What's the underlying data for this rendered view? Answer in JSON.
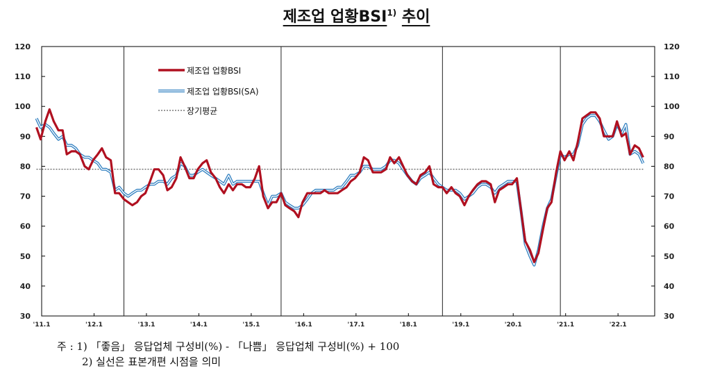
{
  "title": {
    "main": "제조업 업황BSI",
    "sup": "1)",
    "suffix": "추이"
  },
  "chart_data": {
    "type": "line",
    "y_ticks": [
      "120",
      "110",
      "100",
      "90",
      "80",
      "70",
      "60",
      "50",
      "40",
      "30"
    ],
    "ylim": [
      30,
      120
    ],
    "x_tick_labels": [
      "'11.1",
      "'12.1",
      "'13.1",
      "'14.1",
      "'15.1",
      "'16.1",
      "'17.1",
      "'18.1",
      "'19.1",
      "'20.1",
      "'21.1",
      "'22.1"
    ],
    "x_start": "2011.1",
    "x_end": "2022.8",
    "vertical_lines": [
      2012.67,
      2015.67,
      2018.75,
      2021.0
    ],
    "long_term_average": 79,
    "legend": {
      "position": "upper-left",
      "items": [
        "제조업 업황BSI",
        "제조업 업황BSI(SA)",
        "장기평균"
      ]
    },
    "colors": {
      "bsi": "#b01020",
      "sa_outer": "#2f7fc0",
      "sa_inner": "#ffffff",
      "avg": "#333333"
    },
    "series": [
      {
        "name": "제조업 업황BSI",
        "x": [
          2011.0,
          2011.08,
          2011.17,
          2011.25,
          2011.33,
          2011.42,
          2011.5,
          2011.58,
          2011.67,
          2011.75,
          2011.83,
          2011.92,
          2012.0,
          2012.08,
          2012.17,
          2012.25,
          2012.33,
          2012.42,
          2012.5,
          2012.58,
          2012.67,
          2012.75,
          2012.83,
          2012.92,
          2013.0,
          2013.08,
          2013.17,
          2013.25,
          2013.33,
          2013.42,
          2013.5,
          2013.58,
          2013.67,
          2013.75,
          2013.83,
          2013.92,
          2014.0,
          2014.08,
          2014.17,
          2014.25,
          2014.33,
          2014.42,
          2014.5,
          2014.58,
          2014.67,
          2014.75,
          2014.83,
          2014.92,
          2015.0,
          2015.08,
          2015.17,
          2015.25,
          2015.33,
          2015.42,
          2015.5,
          2015.58,
          2015.67,
          2015.75,
          2015.83,
          2015.92,
          2016.0,
          2016.08,
          2016.17,
          2016.25,
          2016.33,
          2016.42,
          2016.5,
          2016.58,
          2016.67,
          2016.75,
          2016.83,
          2016.92,
          2017.0,
          2017.08,
          2017.17,
          2017.25,
          2017.33,
          2017.42,
          2017.5,
          2017.58,
          2017.67,
          2017.75,
          2017.83,
          2017.92,
          2018.0,
          2018.08,
          2018.17,
          2018.25,
          2018.33,
          2018.42,
          2018.5,
          2018.58,
          2018.67,
          2018.75,
          2018.83,
          2018.92,
          2019.0,
          2019.08,
          2019.17,
          2019.25,
          2019.33,
          2019.42,
          2019.5,
          2019.58,
          2019.67,
          2019.75,
          2019.83,
          2019.92,
          2020.0,
          2020.08,
          2020.17,
          2020.25,
          2020.33,
          2020.42,
          2020.5,
          2020.58,
          2020.67,
          2020.75,
          2020.83,
          2020.92,
          2021.0,
          2021.08,
          2021.17,
          2021.25,
          2021.33,
          2021.42,
          2021.5,
          2021.58,
          2021.67,
          2021.75,
          2021.83,
          2021.92,
          2022.0,
          2022.08,
          2022.17,
          2022.25,
          2022.33,
          2022.42,
          2022.5,
          2022.58
        ],
        "y": [
          93,
          89,
          95,
          99,
          95,
          92,
          92,
          84,
          85,
          85,
          84,
          80,
          79,
          82,
          84,
          86,
          83,
          82,
          71,
          71,
          69,
          68,
          67,
          68,
          70,
          71,
          75,
          79,
          79,
          77,
          72,
          73,
          76,
          83,
          80,
          76,
          76,
          79,
          81,
          82,
          78,
          76,
          73,
          71,
          74,
          72,
          74,
          74,
          73,
          73,
          76,
          80,
          70,
          66,
          68,
          68,
          71,
          67,
          66,
          65,
          63,
          68,
          71,
          71,
          71,
          71,
          72,
          71,
          71,
          71,
          72,
          73,
          75,
          76,
          78,
          83,
          82,
          78,
          78,
          78,
          79,
          83,
          81,
          83,
          80,
          77,
          75,
          74,
          77,
          78,
          80,
          74,
          73,
          73,
          71,
          73,
          71,
          70,
          67,
          70,
          72,
          74,
          75,
          75,
          74,
          68,
          72,
          73,
          74,
          74,
          76,
          65,
          55,
          52,
          48,
          51,
          59,
          66,
          68,
          78,
          85,
          82,
          85,
          82,
          88,
          96,
          97,
          98,
          98,
          96,
          90,
          90,
          90,
          95,
          90,
          91,
          84,
          87,
          86,
          83
        ]
      },
      {
        "name": "제조업 업황BSI(SA)",
        "x": [
          2011.0,
          2011.08,
          2011.17,
          2011.25,
          2011.33,
          2011.42,
          2011.5,
          2011.58,
          2011.67,
          2011.75,
          2011.83,
          2011.92,
          2012.0,
          2012.08,
          2012.17,
          2012.25,
          2012.33,
          2012.42,
          2012.5,
          2012.58,
          2012.67,
          2012.75,
          2012.83,
          2012.92,
          2013.0,
          2013.08,
          2013.17,
          2013.25,
          2013.33,
          2013.42,
          2013.5,
          2013.58,
          2013.67,
          2013.75,
          2013.83,
          2013.92,
          2014.0,
          2014.08,
          2014.17,
          2014.25,
          2014.33,
          2014.42,
          2014.5,
          2014.58,
          2014.67,
          2014.75,
          2014.83,
          2014.92,
          2015.0,
          2015.08,
          2015.17,
          2015.25,
          2015.33,
          2015.42,
          2015.5,
          2015.58,
          2015.67,
          2015.75,
          2015.83,
          2015.92,
          2016.0,
          2016.08,
          2016.17,
          2016.25,
          2016.33,
          2016.42,
          2016.5,
          2016.58,
          2016.67,
          2016.75,
          2016.83,
          2016.92,
          2017.0,
          2017.08,
          2017.17,
          2017.25,
          2017.33,
          2017.42,
          2017.5,
          2017.58,
          2017.67,
          2017.75,
          2017.83,
          2017.92,
          2018.0,
          2018.08,
          2018.17,
          2018.25,
          2018.33,
          2018.42,
          2018.5,
          2018.58,
          2018.67,
          2018.75,
          2018.83,
          2018.92,
          2019.0,
          2019.08,
          2019.17,
          2019.25,
          2019.33,
          2019.42,
          2019.5,
          2019.58,
          2019.67,
          2019.75,
          2019.83,
          2019.92,
          2020.0,
          2020.08,
          2020.17,
          2020.25,
          2020.33,
          2020.42,
          2020.5,
          2020.58,
          2020.67,
          2020.75,
          2020.83,
          2020.92,
          2021.0,
          2021.08,
          2021.17,
          2021.25,
          2021.33,
          2021.42,
          2021.5,
          2021.58,
          2021.67,
          2021.75,
          2021.83,
          2021.92,
          2022.0,
          2022.08,
          2022.17,
          2022.25,
          2022.33,
          2022.42,
          2022.5,
          2022.58
        ],
        "y": [
          96,
          93,
          94,
          93,
          91,
          89,
          90,
          87,
          87,
          86,
          84,
          83,
          83,
          82,
          81,
          79,
          79,
          78,
          72,
          73,
          71,
          70,
          71,
          72,
          72,
          73,
          74,
          74,
          75,
          75,
          74,
          76,
          77,
          81,
          80,
          77,
          77,
          78,
          79,
          78,
          77,
          76,
          75,
          74,
          77,
          74,
          75,
          75,
          75,
          75,
          75,
          75,
          71,
          67,
          70,
          70,
          71,
          68,
          67,
          66,
          66,
          67,
          69,
          71,
          72,
          72,
          72,
          72,
          72,
          73,
          73,
          75,
          77,
          77,
          78,
          80,
          80,
          79,
          79,
          79,
          80,
          82,
          82,
          81,
          79,
          77,
          75,
          74,
          76,
          77,
          78,
          76,
          74,
          73,
          72,
          72,
          72,
          71,
          69,
          70,
          71,
          73,
          74,
          74,
          73,
          71,
          73,
          74,
          75,
          75,
          75,
          65,
          54,
          50,
          47,
          52,
          60,
          66,
          69,
          77,
          84,
          83,
          84,
          84,
          87,
          94,
          96,
          97,
          97,
          95,
          92,
          89,
          90,
          94,
          91,
          94,
          84,
          85,
          84,
          81
        ]
      },
      {
        "name": "장기평균",
        "x": [
          2011.0,
          2022.58
        ],
        "y": [
          79,
          79
        ]
      }
    ]
  },
  "notes": {
    "line1": "주 : 1) 「좋음」 응답업체 구성비(%) - 「나쁨」 응답업체 구성비(%) + 100",
    "line2": "2) 실선은 표본개편 시점을 의미"
  }
}
